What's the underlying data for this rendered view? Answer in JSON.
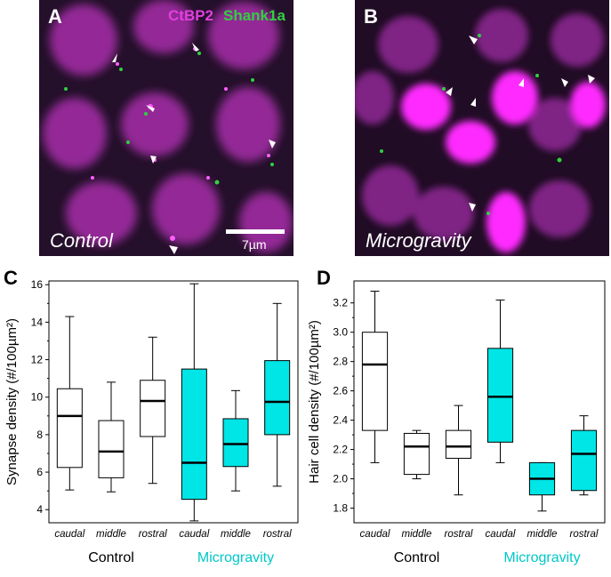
{
  "panels": {
    "a_letter": "A",
    "b_letter": "B",
    "c_letter": "C",
    "d_letter": "D",
    "stain1": "CtBP2",
    "stain2": "Shank1a",
    "control_label": "Control",
    "micro_label": "Microgravity",
    "scale_label": "7µm"
  },
  "colors": {
    "magenta": "#e040e0",
    "green": "#30d040",
    "cyan": "#00e5e5",
    "micro_text": "#00c8c8"
  },
  "chart_data": [
    {
      "type": "box",
      "panel": "C",
      "ylabel": "Synapse density (#/100µm²)",
      "ylim": [
        3.3,
        16.2
      ],
      "yticks": [
        4,
        6,
        8,
        10,
        12,
        14,
        16
      ],
      "categories": [
        "caudal",
        "middle",
        "rostral",
        "caudal",
        "middle",
        "rostral"
      ],
      "groups": [
        {
          "label": "Control",
          "count": 3
        },
        {
          "label": "Microgravity",
          "count": 3
        }
      ],
      "boxes": [
        {
          "min": 5.05,
          "q1": 6.25,
          "median": 9.0,
          "q3": 10.45,
          "max": 14.3,
          "fill": "#ffffff"
        },
        {
          "min": 4.95,
          "q1": 5.7,
          "median": 7.1,
          "q3": 8.75,
          "max": 10.8,
          "fill": "#ffffff"
        },
        {
          "min": 5.4,
          "q1": 7.9,
          "median": 9.8,
          "q3": 10.9,
          "max": 13.2,
          "fill": "#ffffff"
        },
        {
          "min": 3.4,
          "q1": 4.55,
          "median": 6.5,
          "q3": 11.5,
          "max": 16.05,
          "fill": "#00e5e5"
        },
        {
          "min": 5.0,
          "q1": 6.3,
          "median": 7.5,
          "q3": 8.85,
          "max": 10.35,
          "fill": "#00e5e5"
        },
        {
          "min": 5.25,
          "q1": 8.0,
          "median": 9.75,
          "q3": 11.95,
          "max": 15.0,
          "fill": "#00e5e5"
        }
      ]
    },
    {
      "type": "box",
      "panel": "D",
      "ylabel": "Hair cell density (#/100µm²)",
      "ylim": [
        1.7,
        3.35
      ],
      "yticks": [
        1.8,
        2.0,
        2.2,
        2.4,
        2.6,
        2.8,
        3.0,
        3.2
      ],
      "categories": [
        "caudal",
        "middle",
        "rostral",
        "caudal",
        "middle",
        "rostral"
      ],
      "groups": [
        {
          "label": "Control",
          "count": 3
        },
        {
          "label": "Microgravity",
          "count": 3
        }
      ],
      "boxes": [
        {
          "min": 2.11,
          "q1": 2.33,
          "median": 2.78,
          "q3": 3.0,
          "max": 3.28,
          "fill": "#ffffff"
        },
        {
          "min": 2.0,
          "q1": 2.03,
          "median": 2.22,
          "q3": 2.31,
          "max": 2.33,
          "fill": "#ffffff"
        },
        {
          "min": 1.89,
          "q1": 2.14,
          "median": 2.22,
          "q3": 2.33,
          "max": 2.5,
          "fill": "#ffffff"
        },
        {
          "min": 2.11,
          "q1": 2.25,
          "median": 2.56,
          "q3": 2.89,
          "max": 3.22,
          "fill": "#00e5e5"
        },
        {
          "min": 1.78,
          "q1": 1.89,
          "median": 2.0,
          "q3": 2.11,
          "max": 2.11,
          "fill": "#00e5e5"
        },
        {
          "min": 1.89,
          "q1": 1.92,
          "median": 2.17,
          "q3": 2.33,
          "max": 2.43,
          "fill": "#00e5e5"
        }
      ]
    }
  ]
}
